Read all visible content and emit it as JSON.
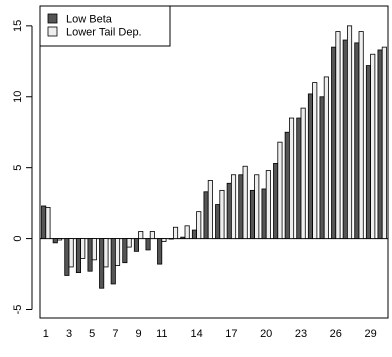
{
  "chart_data": {
    "type": "bar",
    "categories": [
      "1",
      "2",
      "3",
      "4",
      "5",
      "6",
      "7",
      "8",
      "9",
      "10",
      "11",
      "12",
      "13",
      "14",
      "15",
      "16",
      "17",
      "18",
      "19",
      "20",
      "21",
      "22",
      "23",
      "24",
      "25",
      "26",
      "27",
      "28",
      "29",
      "30"
    ],
    "x_tick_labels": [
      "1",
      "3",
      "5",
      "7",
      "9",
      "11",
      "14",
      "17",
      "20",
      "23",
      "26",
      "29"
    ],
    "x_tick_indices": [
      1,
      3,
      5,
      7,
      9,
      11,
      14,
      17,
      20,
      23,
      26,
      29
    ],
    "series": [
      {
        "name": "Low Beta",
        "color": "#555555",
        "values": [
          2.3,
          -0.3,
          -2.6,
          -2.4,
          -2.3,
          -3.5,
          -3.2,
          -1.7,
          -0.9,
          -0.8,
          -1.8,
          0.0,
          0.1,
          0.6,
          3.3,
          2.4,
          3.9,
          4.5,
          3.4,
          3.5,
          5.3,
          7.5,
          8.5,
          10.2,
          10.0,
          13.5,
          14.0,
          13.8,
          12.2,
          13.3
        ]
      },
      {
        "name": "Lower Tail Dep.",
        "color": "#eeeeee",
        "values": [
          2.2,
          -0.1,
          -2.0,
          -1.4,
          -1.5,
          -2.0,
          -1.9,
          -0.6,
          0.5,
          0.5,
          -0.2,
          0.8,
          0.9,
          1.9,
          4.1,
          3.4,
          4.5,
          5.1,
          4.5,
          4.8,
          6.8,
          8.5,
          9.2,
          11.0,
          11.4,
          14.6,
          15.0,
          14.6,
          13.0,
          13.5
        ]
      }
    ],
    "yticks": [
      -5,
      0,
      5,
      10,
      15
    ],
    "ylim": [
      -5.6,
      16.4
    ],
    "title": "",
    "xlabel": "",
    "ylabel": "",
    "legend_position": "top-left",
    "grid": false,
    "zero_line": true
  }
}
